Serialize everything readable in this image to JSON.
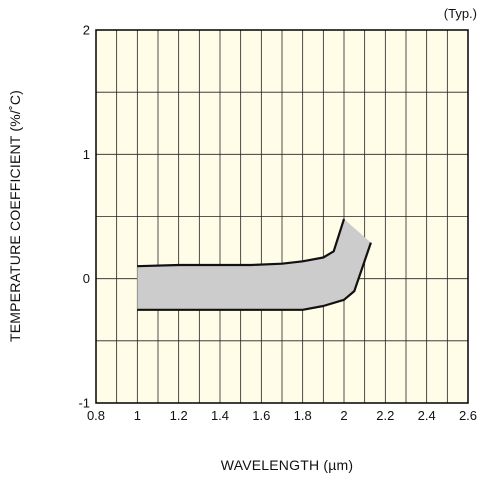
{
  "chart_data": {
    "type": "area",
    "note": "(Typ.)",
    "xlabel": "WAVELENGTH (µm)",
    "ylabel": "TEMPERATURE COEFFICIENT (%/˚C)",
    "xlim": [
      0.8,
      2.6
    ],
    "ylim": [
      -1,
      2
    ],
    "x_ticks": [
      "0.8",
      "1",
      "1.2",
      "1.4",
      "1.6",
      "1.8",
      "2",
      "2.2",
      "2.4",
      "2.6"
    ],
    "y_ticks": [
      "-1",
      "0",
      "1",
      "2"
    ],
    "grid": true,
    "fill_color": "#cccccc",
    "background_color": "#fffde8",
    "line_color": "#111111",
    "series": [
      {
        "x": [
          1.0,
          1.2,
          1.4,
          1.55,
          1.7,
          1.8,
          1.9,
          1.95,
          2.0
        ],
        "values": [
          0.1,
          0.11,
          0.11,
          0.11,
          0.12,
          0.14,
          0.17,
          0.22,
          0.48
        ]
      },
      {
        "x": [
          1.0,
          1.2,
          1.4,
          1.6,
          1.8,
          1.9,
          2.0,
          2.05,
          2.13
        ],
        "values": [
          -0.25,
          -0.25,
          -0.25,
          -0.25,
          -0.25,
          -0.22,
          -0.17,
          -0.1,
          0.29
        ]
      }
    ]
  }
}
